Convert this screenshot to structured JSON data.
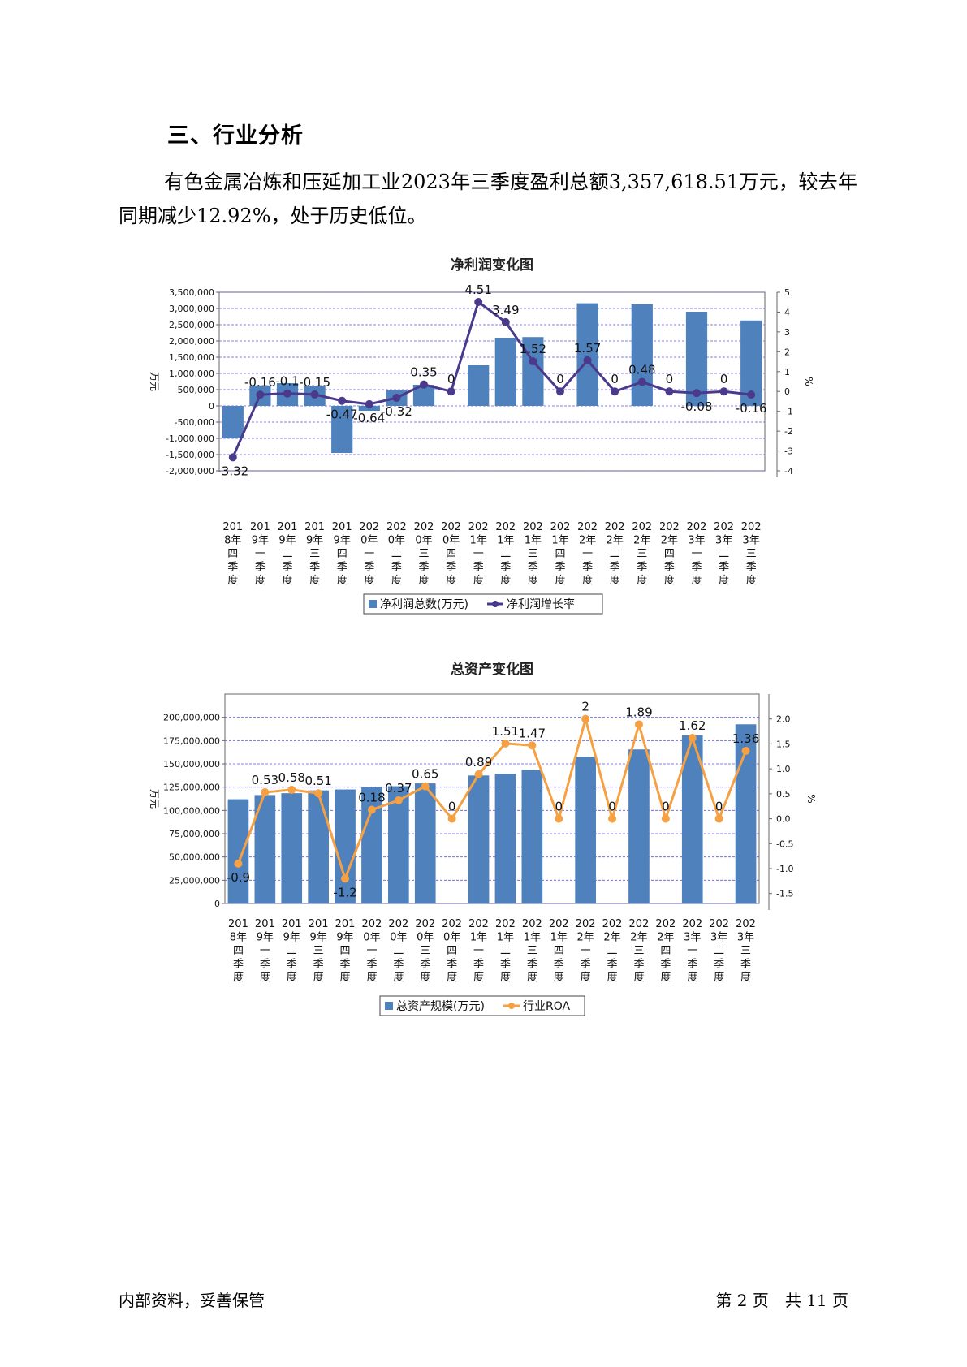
{
  "heading": "三、行业分析",
  "paragraph": "有色金属冶炼和压延加工业2023年三季度盈利总额3,357,618.51万元，较去年同期减少12.92%，处于历史低位。",
  "footer": {
    "left": "内部资料，妥善保管",
    "page": "第 2 页　共 11 页"
  },
  "chart_data": [
    {
      "type": "bar",
      "title": "净利润变化图",
      "categories": [
        "2018年四季度",
        "2019年一季度",
        "2019年二季度",
        "2019年三季度",
        "2019年四季度",
        "2020年一季度",
        "2020年二季度",
        "2020年三季度",
        "2020年四季度",
        "2021年一季度",
        "2021年二季度",
        "2021年三季度",
        "2021年四季度",
        "2022年一季度",
        "2022年二季度",
        "2022年三季度",
        "2022年四季度",
        "2023年一季度",
        "2023年二季度",
        "2023年三季度"
      ],
      "category_lines": [
        [
          "201",
          "8年",
          "四",
          "季",
          "度"
        ],
        [
          "201",
          "9年",
          "一",
          "季",
          "度"
        ],
        [
          "201",
          "9年",
          "二",
          "季",
          "度"
        ],
        [
          "201",
          "9年",
          "三",
          "季",
          "度"
        ],
        [
          "201",
          "9年",
          "四",
          "季",
          "度"
        ],
        [
          "202",
          "0年",
          "一",
          "季",
          "度"
        ],
        [
          "202",
          "0年",
          "二",
          "季",
          "度"
        ],
        [
          "202",
          "0年",
          "三",
          "季",
          "度"
        ],
        [
          "202",
          "0年",
          "四",
          "季",
          "度"
        ],
        [
          "202",
          "1年",
          "一",
          "季",
          "度"
        ],
        [
          "202",
          "1年",
          "二",
          "季",
          "度"
        ],
        [
          "202",
          "1年",
          "三",
          "季",
          "度"
        ],
        [
          "202",
          "1年",
          "四",
          "季",
          "度"
        ],
        [
          "202",
          "2年",
          "一",
          "季",
          "度"
        ],
        [
          "202",
          "2年",
          "二",
          "季",
          "度"
        ],
        [
          "202",
          "2年",
          "三",
          "季",
          "度"
        ],
        [
          "202",
          "2年",
          "四",
          "季",
          "度"
        ],
        [
          "202",
          "3年",
          "一",
          "季",
          "度"
        ],
        [
          "202",
          "3年",
          "二",
          "季",
          "度"
        ],
        [
          "202",
          "3年",
          "三",
          "季",
          "度"
        ]
      ],
      "ylabel": "万元",
      "y2label": "%",
      "ylim": [
        -2000000,
        3500000
      ],
      "y2lim": [
        -4,
        5
      ],
      "yticks": [
        -2000000,
        -1500000,
        -1000000,
        -500000,
        0,
        500000,
        1000000,
        1500000,
        2000000,
        2500000,
        3000000,
        3500000
      ],
      "ytick_labels": [
        "-2,000,000",
        "-1,500,000",
        "-1,000,000",
        "-500,000",
        "0",
        "500,000",
        "1,000,000",
        "1,500,000",
        "2,000,000",
        "2,500,000",
        "3,000,000",
        "3,500,000"
      ],
      "y2ticks": [
        -4,
        -3,
        -2,
        -1,
        0,
        1,
        2,
        3,
        4,
        5
      ],
      "y2tick_labels": [
        "-4",
        "-3",
        "-2",
        "-1",
        "0",
        "1",
        "2",
        "3",
        "4",
        "5"
      ],
      "grid": true,
      "legend_position": "bottom",
      "series": [
        {
          "name": "净利润总数(万元)",
          "kind": "bar",
          "axis": "left",
          "color": "#4F81BD",
          "values": [
            -1000000,
            630000,
            700000,
            620000,
            -1450000,
            -150000,
            480000,
            650000,
            null,
            1250000,
            2100000,
            2120000,
            null,
            3160000,
            null,
            3130000,
            null,
            2900000,
            null,
            2630000
          ]
        },
        {
          "name": "净利润增长率",
          "kind": "line",
          "axis": "right",
          "color": "#4B3A8C",
          "values": [
            -3.32,
            -0.16,
            -0.1,
            -0.15,
            -0.47,
            -0.64,
            -0.32,
            0.35,
            0,
            4.51,
            3.49,
            1.52,
            0,
            1.57,
            0,
            0.48,
            0,
            -0.08,
            0,
            -0.16
          ],
          "labels": [
            "-3.32",
            "-0.16",
            "-0.1",
            "-0.15",
            "-0.47",
            "-0.64",
            "-0.32",
            "0.35",
            "0",
            "4.51",
            "3.49",
            "1.52",
            "0",
            "1.57",
            "0",
            "0.48",
            "0",
            "-0.08",
            "0",
            "-0.16"
          ]
        }
      ]
    },
    {
      "type": "bar",
      "title": "总资产变化图",
      "categories": [
        "2018年四季度",
        "2019年一季度",
        "2019年二季度",
        "2019年三季度",
        "2019年四季度",
        "2020年一季度",
        "2020年二季度",
        "2020年三季度",
        "2020年四季度",
        "2021年一季度",
        "2021年二季度",
        "2021年三季度",
        "2021年四季度",
        "2022年一季度",
        "2022年二季度",
        "2022年三季度",
        "2022年四季度",
        "2023年一季度",
        "2023年二季度",
        "2023年三季度"
      ],
      "category_lines": [
        [
          "201",
          "8年",
          "四",
          "季",
          "度"
        ],
        [
          "201",
          "9年",
          "一",
          "季",
          "度"
        ],
        [
          "201",
          "9年",
          "二",
          "季",
          "度"
        ],
        [
          "201",
          "9年",
          "三",
          "季",
          "度"
        ],
        [
          "201",
          "9年",
          "四",
          "季",
          "度"
        ],
        [
          "202",
          "0年",
          "一",
          "季",
          "度"
        ],
        [
          "202",
          "0年",
          "二",
          "季",
          "度"
        ],
        [
          "202",
          "0年",
          "三",
          "季",
          "度"
        ],
        [
          "202",
          "0年",
          "四",
          "季",
          "度"
        ],
        [
          "202",
          "1年",
          "一",
          "季",
          "度"
        ],
        [
          "202",
          "1年",
          "二",
          "季",
          "度"
        ],
        [
          "202",
          "1年",
          "三",
          "季",
          "度"
        ],
        [
          "202",
          "1年",
          "四",
          "季",
          "度"
        ],
        [
          "202",
          "2年",
          "一",
          "季",
          "度"
        ],
        [
          "202",
          "2年",
          "二",
          "季",
          "度"
        ],
        [
          "202",
          "2年",
          "三",
          "季",
          "度"
        ],
        [
          "202",
          "2年",
          "四",
          "季",
          "度"
        ],
        [
          "202",
          "3年",
          "一",
          "季",
          "度"
        ],
        [
          "202",
          "3年",
          "二",
          "季",
          "度"
        ],
        [
          "202",
          "3年",
          "三",
          "季",
          "度"
        ]
      ],
      "ylabel": "万元",
      "y2label": "%",
      "ylim": [
        0,
        225000000
      ],
      "y2lim": [
        -1.7,
        2.5
      ],
      "yticks": [
        0,
        25000000,
        50000000,
        75000000,
        100000000,
        125000000,
        150000000,
        175000000,
        200000000
      ],
      "ytick_labels": [
        "0",
        "25,000,000",
        "50,000,000",
        "75,000,000",
        "100,000,000",
        "125,000,000",
        "150,000,000",
        "175,000,000",
        "200,000,000"
      ],
      "y2ticks": [
        -1.5,
        -1.0,
        -0.5,
        0.0,
        0.5,
        1.0,
        1.5,
        2.0
      ],
      "y2tick_labels": [
        "-1.5",
        "-1.0",
        "-0.5",
        "0.0",
        "0.5",
        "1.0",
        "1.5",
        "2.0"
      ],
      "grid": true,
      "legend_position": "bottom",
      "series": [
        {
          "name": "总资产规模(万元)",
          "kind": "bar",
          "axis": "left",
          "color": "#4F81BD",
          "values": [
            112000000,
            116500000,
            118500000,
            121500000,
            122500000,
            125000000,
            126000000,
            129000000,
            null,
            137500000,
            139500000,
            143500000,
            null,
            157500000,
            null,
            165500000,
            null,
            180500000,
            null,
            192500000
          ]
        },
        {
          "name": "行业ROA",
          "kind": "line",
          "axis": "right",
          "color": "#F4A043",
          "values": [
            -0.9,
            0.53,
            0.58,
            0.51,
            -1.2,
            0.18,
            0.37,
            0.65,
            0,
            0.89,
            1.51,
            1.47,
            0,
            2,
            0,
            1.89,
            0,
            1.62,
            0,
            1.36
          ],
          "labels": [
            "-0.9",
            "0.53",
            "0.58",
            "0.51",
            "-1.2",
            "0.18",
            "0.37",
            "0.65",
            "0",
            "0.89",
            "1.51",
            "1.47",
            "0",
            "2",
            "0",
            "1.89",
            "0",
            "1.62",
            "0",
            "1.36"
          ]
        }
      ]
    }
  ]
}
